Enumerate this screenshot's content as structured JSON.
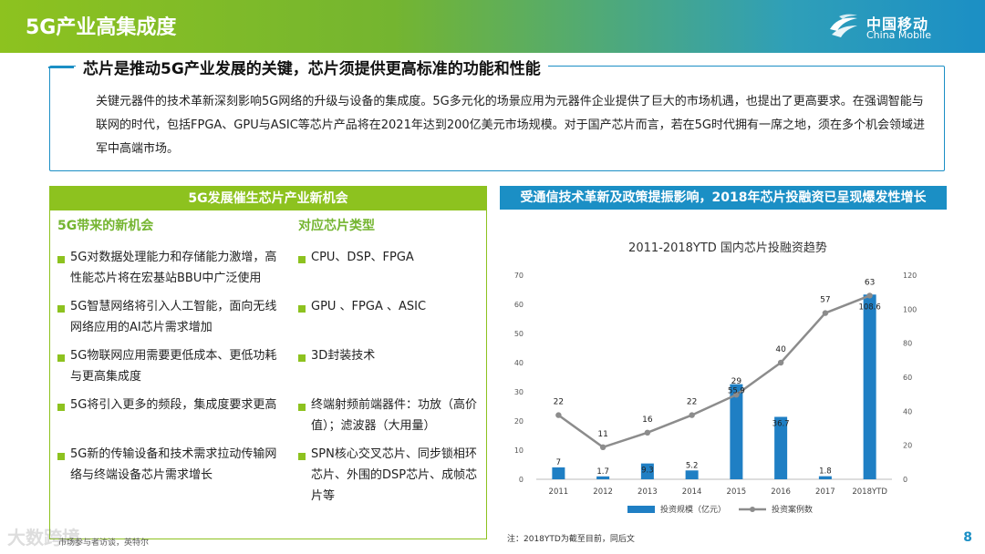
{
  "header": {
    "title": "5G产业高集成度",
    "logo_cn": "中国移动",
    "logo_en": "China Mobile"
  },
  "summary": {
    "heading": "芯片是推动5G产业发展的关键，芯片须提供更高标准的功能和性能",
    "text": "关键元器件的技术革新深刻影响5G网络的升级与设备的集成度。5G多元化的场景应用为元器件企业提供了巨大的市场机遇，也提出了更高要求。在强调智能与联网的时代，包括FPGA、GPU与ASIC等芯片产品将在2021年达到200亿美元市场规模。对于国产芯片而言，若在5G时代拥有一席之地，须在多个机会领域进军中高端市场。"
  },
  "left_panel": {
    "title": "5G发展催生芯片产业新机会",
    "col1_heading": "5G带来的新机会",
    "col2_heading": "对应芯片类型",
    "opportunities": [
      "5G对数据处理能力和存储能力激增，高性能芯片将在宏基站BBU中广泛使用",
      "5G智慧网络将引入人工智能，面向无线网络应用的AI芯片需求增加",
      "5G物联网应用需要更低成本、更低功耗与更高集成度",
      "5G将引入更多的频段，集成度要求更高",
      "5G新的传输设备和技术需求拉动传输网络与终端设备芯片需求增长"
    ],
    "chip_types": [
      "CPU、DSP、FPGA",
      "GPU 、FPGA 、ASIC",
      "3D封装技术",
      "终端射频前端器件：功放（高价值）；滤波器（大用量）",
      "SPN核心交叉芯片、同步锁相环芯片、外围的DSP芯片、成帧芯片等"
    ]
  },
  "right_panel": {
    "title": "受通信技术革新及政策提振影响，2018年芯片投融资已呈现爆发性增长",
    "note": "注：2018YTD为截至目前，同后文"
  },
  "chart_data": {
    "type": "bar",
    "title": "2011-2018YTD 国内芯片投融资趋势",
    "categories": [
      "2011",
      "2012",
      "2013",
      "2014",
      "2015",
      "2016",
      "2017",
      "2018YTD"
    ],
    "series": [
      {
        "name": "投资规模（亿元）",
        "type": "bar",
        "axis": "right",
        "color": "#1f7fc4",
        "values": [
          7,
          1.7,
          9.3,
          5.2,
          55.9,
          36.7,
          1.8,
          108.6
        ],
        "labels": [
          "7",
          "1.7",
          "9.3",
          "5.2",
          "55.9",
          "36.7",
          "1.8",
          "108.6"
        ]
      },
      {
        "name": "投资案例数",
        "type": "line",
        "axis": "left",
        "color": "#8c8c8c",
        "values": [
          22,
          11,
          16,
          22,
          29,
          40,
          57,
          63
        ],
        "labels": [
          "22",
          "11",
          "16",
          "22",
          "29",
          "40",
          "57",
          "63"
        ]
      }
    ],
    "left_axis": {
      "ticks": [
        "0",
        "10",
        "20",
        "30",
        "40",
        "50",
        "60",
        "70"
      ],
      "range": [
        0,
        70
      ]
    },
    "right_axis": {
      "ticks": [
        "0",
        "20",
        "40",
        "60",
        "80",
        "100",
        "120"
      ],
      "range": [
        0,
        120
      ]
    },
    "legend_position": "bottom"
  },
  "footer": {
    "source": "市场参与者访谈，英特尔",
    "watermark": "大数跨境",
    "page_number": "8"
  }
}
